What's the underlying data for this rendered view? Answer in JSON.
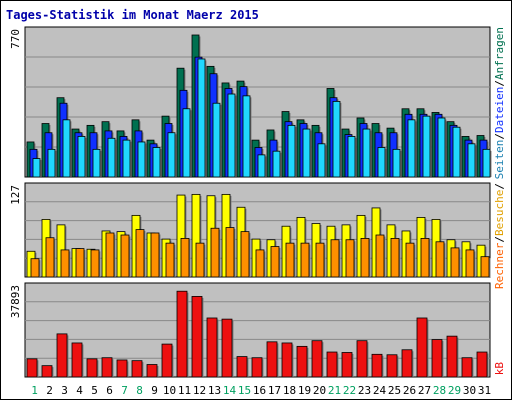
{
  "title": "Tages-Statistik im Monat Maerz 2015",
  "colors": {
    "background": "#c0c0c0",
    "panel_bg": "#c0c0c0",
    "grid": "#888888",
    "title": "#0000aa",
    "hits": "#007050",
    "files": "#1030ff",
    "pages": "#20d8ff",
    "visits": "#ffff00",
    "sites": "#ff9000",
    "kbytes": "#ee1010",
    "weekend_label": "#00a060",
    "weekday_label": "#000000"
  },
  "right_labels": {
    "hits": "Anfragen",
    "files": "Dateien",
    "pages": "Seiten",
    "visits": "Besuche",
    "sites": "Rechner",
    "kbytes": "kB",
    "separator": "/"
  },
  "chart_data": [
    {
      "type": "bar",
      "panel": "top",
      "ymax_label": "770",
      "ylim": [
        0,
        770
      ],
      "categories": [
        "1",
        "2",
        "3",
        "4",
        "5",
        "6",
        "7",
        "8",
        "9",
        "10",
        "11",
        "12",
        "13",
        "14",
        "15",
        "16",
        "17",
        "18",
        "19",
        "20",
        "21",
        "22",
        "23",
        "24",
        "25",
        "26",
        "27",
        "28",
        "29",
        "30",
        "31"
      ],
      "weekend": [
        1,
        7,
        8,
        14,
        15,
        21,
        22,
        28,
        29
      ],
      "series": [
        {
          "name": "Anfragen",
          "key": "hits",
          "values": [
            190,
            290,
            430,
            260,
            280,
            300,
            250,
            310,
            200,
            330,
            590,
            770,
            600,
            510,
            520,
            200,
            255,
            355,
            310,
            280,
            480,
            260,
            320,
            290,
            265,
            370,
            370,
            350,
            300,
            220,
            225
          ]
        },
        {
          "name": "Dateien",
          "key": "files",
          "values": [
            150,
            240,
            400,
            240,
            240,
            250,
            220,
            250,
            180,
            290,
            470,
            650,
            560,
            480,
            490,
            160,
            200,
            300,
            290,
            240,
            430,
            230,
            290,
            240,
            240,
            340,
            340,
            340,
            280,
            200,
            200
          ]
        },
        {
          "name": "Seiten",
          "key": "pages",
          "values": [
            100,
            150,
            310,
            220,
            150,
            210,
            200,
            190,
            160,
            240,
            370,
            640,
            400,
            450,
            440,
            120,
            140,
            280,
            260,
            180,
            410,
            220,
            260,
            160,
            150,
            310,
            330,
            320,
            270,
            180,
            150
          ]
        }
      ]
    },
    {
      "type": "bar",
      "panel": "middle",
      "ymax_label": "127",
      "ylim": [
        0,
        127
      ],
      "series": [
        {
          "name": "Besuche",
          "key": "visits",
          "values": [
            38,
            85,
            77,
            42,
            41,
            68,
            67,
            91,
            65,
            56,
            121,
            122,
            120,
            122,
            103,
            56,
            55,
            75,
            88,
            79,
            75,
            77,
            91,
            102,
            77,
            68,
            88,
            85,
            55,
            52,
            47
          ]
        },
        {
          "name": "Rechner",
          "key": "sites",
          "values": [
            27,
            58,
            40,
            42,
            40,
            65,
            62,
            70,
            65,
            50,
            57,
            50,
            72,
            73,
            67,
            40,
            45,
            50,
            50,
            50,
            55,
            55,
            57,
            62,
            57,
            50,
            57,
            52,
            43,
            40,
            30
          ]
        }
      ]
    },
    {
      "type": "bar",
      "panel": "bottom",
      "ymax_label": "37893",
      "ylim": [
        0,
        37893
      ],
      "series": [
        {
          "name": "kB",
          "key": "kbytes",
          "values": [
            8000,
            5000,
            19000,
            15000,
            8000,
            8500,
            7500,
            7200,
            5500,
            14500,
            37800,
            35500,
            26000,
            25500,
            9000,
            8500,
            15500,
            15000,
            13500,
            16000,
            11000,
            10800,
            16000,
            10000,
            9800,
            12000,
            26000,
            16500,
            18000,
            8500,
            11000
          ]
        }
      ]
    }
  ],
  "x_axis": {
    "labels": [
      "1",
      "2",
      "3",
      "4",
      "5",
      "6",
      "7",
      "8",
      "9",
      "10",
      "11",
      "12",
      "13",
      "14",
      "15",
      "16",
      "17",
      "18",
      "19",
      "20",
      "21",
      "22",
      "23",
      "24",
      "25",
      "26",
      "27",
      "28",
      "29",
      "30",
      "31"
    ]
  }
}
